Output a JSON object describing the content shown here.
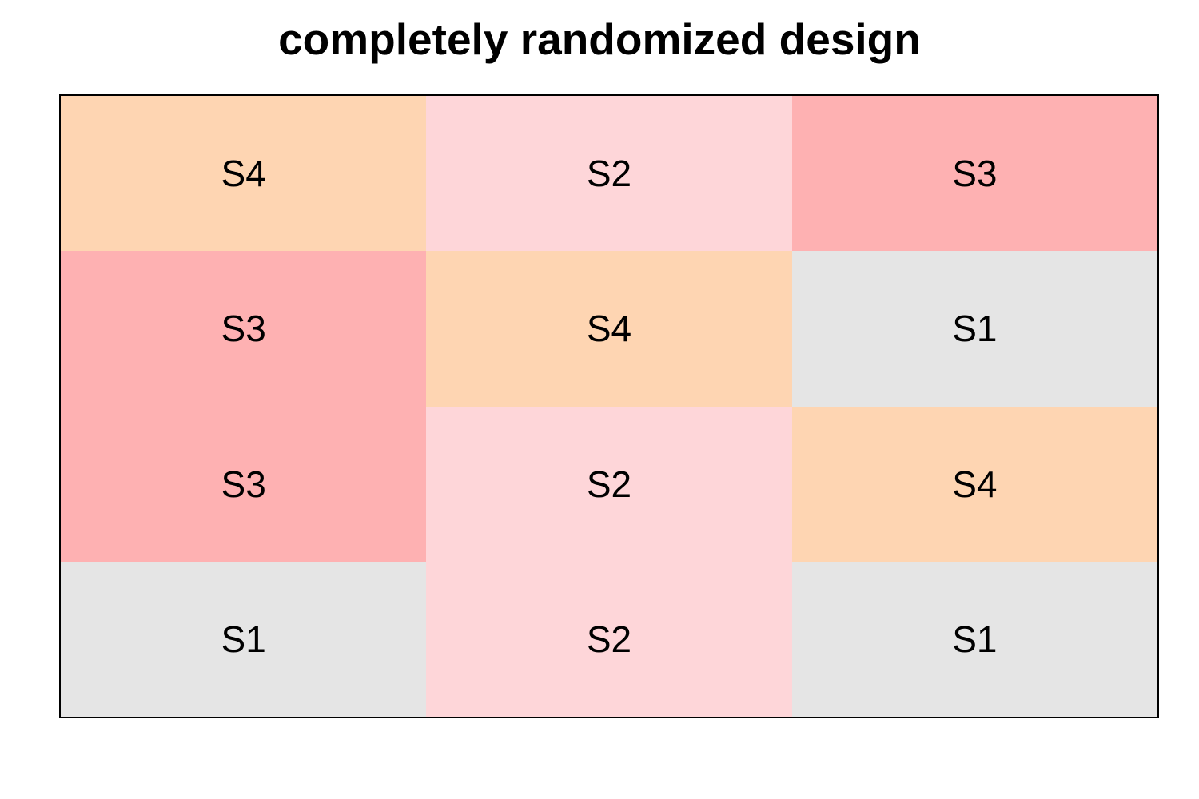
{
  "title": "completely randomized design",
  "colors": {
    "S1": "#e5e5e5",
    "S2": "#fed6d9",
    "S3": "#feb1b2",
    "S4": "#fed5b2"
  },
  "layout": {
    "columns": 3,
    "rows": 4,
    "cells": [
      [
        "S4",
        "S2",
        "S3"
      ],
      [
        "S3",
        "S4",
        "S1"
      ],
      [
        "S3",
        "S2",
        "S4"
      ],
      [
        "S1",
        "S2",
        "S1"
      ]
    ]
  }
}
